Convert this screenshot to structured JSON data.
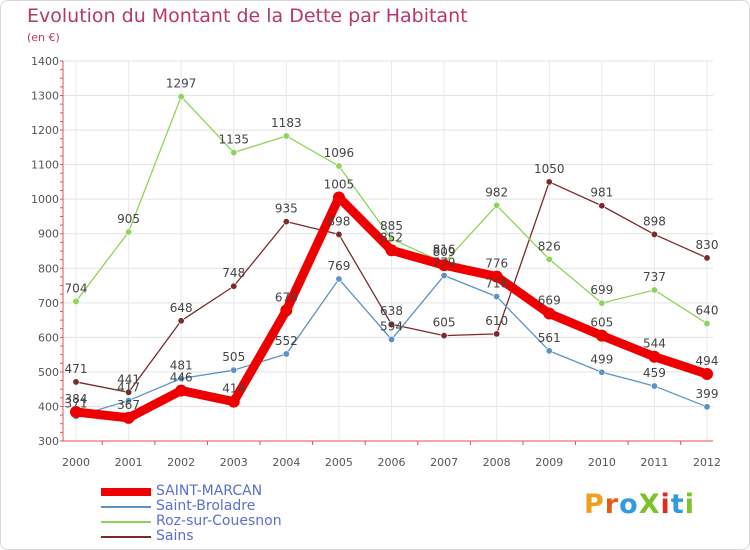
{
  "title": "Evolution du Montant de la Dette par Habitant",
  "subtitle": "(en €)",
  "logo": "ProXiti",
  "chart_data": {
    "type": "line",
    "title": "Evolution du Montant de la Dette par Habitant",
    "subtitle": "(en €)",
    "xlabel": "",
    "ylabel": "",
    "x": [
      "2000",
      "2001",
      "2002",
      "2003",
      "2004",
      "2005",
      "2006",
      "2007",
      "2008",
      "2009",
      "2010",
      "2011",
      "2012"
    ],
    "ylim": [
      300,
      1400
    ],
    "yticks": [
      300,
      400,
      500,
      600,
      700,
      800,
      900,
      1000,
      1100,
      1200,
      1300,
      1400
    ],
    "grid": true,
    "legend_position": "bottom-left",
    "series": [
      {
        "name": "Sains",
        "color": "#7a2a2a",
        "values": [
          471,
          441,
          648,
          748,
          935,
          898,
          638,
          605,
          610,
          1050,
          981,
          898,
          830
        ]
      },
      {
        "name": "Roz-sur-Couesnon",
        "color": "#8fd45a",
        "values": [
          704,
          905,
          1297,
          1135,
          1183,
          1096,
          885,
          816,
          982,
          826,
          699,
          737,
          640
        ]
      },
      {
        "name": "Saint-Broladre",
        "color": "#5b93c7",
        "values": [
          371,
          417,
          481,
          505,
          552,
          769,
          594,
          779,
          718,
          561,
          499,
          459,
          399
        ]
      },
      {
        "name": "SAINT-MARCAN",
        "color": "#ee0000",
        "values": [
          384,
          367,
          446,
          414,
          678,
          1005,
          852,
          809,
          776,
          669,
          605,
          544,
          494
        ]
      }
    ]
  },
  "legend_order": [
    3,
    2,
    1,
    0
  ]
}
